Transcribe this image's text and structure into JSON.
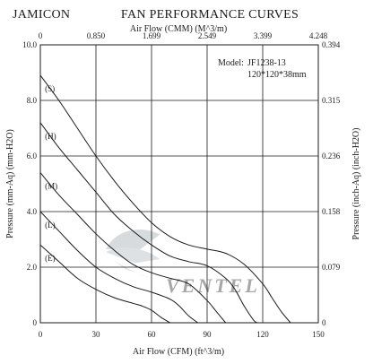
{
  "header": {
    "brand": "JAMICON",
    "title": "FAN PERFORMANCE CURVES"
  },
  "model_box": {
    "label": "Model:",
    "model": "JF1238-13",
    "size": "120*120*38mm"
  },
  "watermark": "VENTEL",
  "chart_data": {
    "type": "line",
    "title": "FAN PERFORMANCE CURVES",
    "xlabel": "Air Flow (CFM) (ft^3/m)",
    "ylabel": "Pressure (mm-Aq) (mm-H2O)",
    "x2label": "Air Flow (CMM) (M^3/m)",
    "y2label": "Pressure (inch-Aq) (inch-H2O)",
    "xlim": [
      0,
      150
    ],
    "ylim": [
      0,
      10
    ],
    "x_ticks": [
      "0",
      "30",
      "60",
      "90",
      "120",
      "150"
    ],
    "y_ticks": [
      "0",
      "2.0",
      "4.0",
      "6.0",
      "8.0",
      "10.0"
    ],
    "x2_ticks": [
      "0",
      "0.850",
      "1.699",
      "2.549",
      "3.399",
      "4.248"
    ],
    "y2_ticks": [
      "0",
      "0.079",
      "0.158",
      "0.236",
      "0.315",
      "0.394"
    ],
    "grid": true,
    "series": [
      {
        "name": "(S)",
        "x": [
          0,
          10,
          20,
          30,
          40,
          50,
          60,
          70,
          80,
          90,
          100,
          110,
          120,
          125,
          130,
          135
        ],
        "y": [
          8.9,
          8.0,
          7.0,
          6.0,
          5.1,
          4.3,
          3.6,
          3.1,
          2.8,
          2.65,
          2.5,
          2.1,
          1.4,
          0.9,
          0.4,
          0.0
        ]
      },
      {
        "name": "(H)",
        "x": [
          0,
          10,
          20,
          30,
          40,
          50,
          60,
          70,
          80,
          90,
          100,
          105,
          110,
          115,
          117
        ],
        "y": [
          7.2,
          6.3,
          5.5,
          4.7,
          3.9,
          3.3,
          2.8,
          2.4,
          2.2,
          2.05,
          1.6,
          1.2,
          0.6,
          0.1,
          0.0
        ]
      },
      {
        "name": "(M)",
        "x": [
          0,
          10,
          20,
          30,
          40,
          50,
          60,
          70,
          80,
          90,
          95,
          100
        ],
        "y": [
          5.4,
          4.6,
          3.9,
          3.2,
          2.6,
          2.1,
          1.8,
          1.6,
          1.4,
          0.8,
          0.4,
          0.0
        ]
      },
      {
        "name": "(L)",
        "x": [
          0,
          10,
          20,
          30,
          40,
          50,
          60,
          70,
          75,
          80,
          85
        ],
        "y": [
          4.0,
          3.3,
          2.6,
          2.0,
          1.6,
          1.3,
          1.1,
          0.85,
          0.6,
          0.25,
          0.0
        ]
      },
      {
        "name": "(E)",
        "x": [
          0,
          10,
          20,
          30,
          40,
          50,
          55,
          60,
          65,
          70
        ],
        "y": [
          2.8,
          2.2,
          1.6,
          1.2,
          0.9,
          0.7,
          0.6,
          0.45,
          0.2,
          0.0
        ]
      }
    ]
  }
}
